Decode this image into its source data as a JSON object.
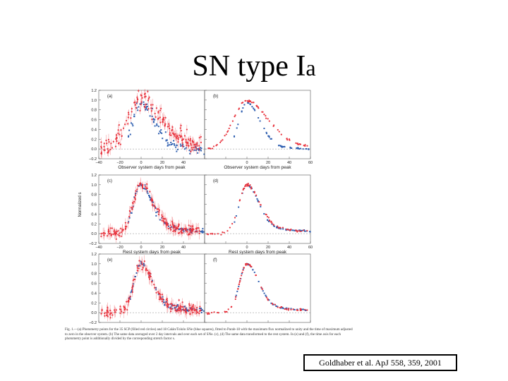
{
  "title": {
    "main": "SN type I",
    "suffix": "a"
  },
  "citation": "Goldhaber et al. ApJ 558, 359, 2001",
  "caption": "Fig. 1.—(a) Photometry points for the 35 SCP (filled red circles) and 18 Calán/Tololo SNe (blue squares), fitted to Parab-18 with the maximum flux normalized to unity and the time of maximum adjusted to zero in the observer system. (b) The same data averaged over 2 day intervals and over each set of SNe. (c), (d) The same data transformed to the rest system. In (e) and (f), the time axis for each photometry point is additionally divided by the corresponding stretch factor s.",
  "colors": {
    "scp": "#e8323c",
    "calan": "#2f5fb0"
  },
  "figure": {
    "ylabel": "Normalized  s",
    "xlabel_top": "Observer system days from peak",
    "xlabel_mid": "Rest system days from peak",
    "xlabel_bottom": "Rest system days from peak",
    "yticks": [
      "1.2",
      "1.0",
      "0.8",
      "0.6",
      "0.4",
      "0.2",
      "0.0",
      "−0.2"
    ],
    "xticks_left": [
      "−40",
      "−20",
      "0",
      "20",
      "40"
    ],
    "xticks_right": [
      "0",
      "20",
      "40",
      "60"
    ],
    "panels": [
      {
        "label": "(a)",
        "mode": "obs",
        "scatter": "high"
      },
      {
        "label": "(b)",
        "mode": "obs",
        "scatter": "avg"
      },
      {
        "label": "(c)",
        "mode": "rest",
        "scatter": "mid"
      },
      {
        "label": "(d)",
        "mode": "rest",
        "scatter": "avg"
      },
      {
        "label": "(e)",
        "mode": "stretch",
        "scatter": "mid"
      },
      {
        "label": "(f)",
        "mode": "stretch",
        "scatter": "avg"
      }
    ]
  },
  "chart_data": {
    "type": "scatter",
    "title": "",
    "xlabel": "Observer system days from peak / Rest system days from peak",
    "ylabel": "Normalized flux",
    "ylim": [
      -0.2,
      1.2
    ],
    "xlim": [
      -40,
      60
    ],
    "panels": [
      "(a)",
      "(b)",
      "(c)",
      "(d)",
      "(e)",
      "(f)"
    ],
    "series": [
      {
        "name": "SCP",
        "x": [
          -20,
          -15,
          -10,
          -5,
          0,
          5,
          10,
          15,
          20,
          30,
          40,
          50
        ],
        "y": [
          0.12,
          0.35,
          0.65,
          0.88,
          1.0,
          0.93,
          0.78,
          0.58,
          0.42,
          0.22,
          0.12,
          0.06
        ]
      },
      {
        "name": "Calán/Tololo",
        "x": [
          -10,
          -5,
          0,
          5,
          10,
          15,
          20,
          25,
          30,
          40,
          50,
          60
        ],
        "y": [
          0.62,
          0.88,
          1.0,
          0.92,
          0.75,
          0.55,
          0.36,
          0.25,
          0.18,
          0.1,
          0.06,
          0.04
        ]
      }
    ]
  }
}
